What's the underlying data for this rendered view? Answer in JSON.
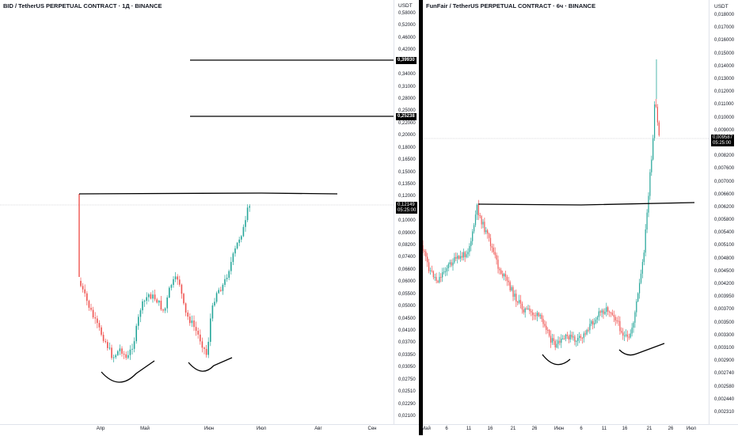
{
  "left": {
    "title": "BID / TetherUS PERPETUAL CONTRACT · 1Д · BINANCE",
    "currency": "USDT",
    "price_axis": [
      "0,58000",
      "0,52000",
      "0,46000",
      "0,42000",
      "0,38000",
      "0,34000",
      "0,31000",
      "0,28000",
      "0,25000",
      "0,22000",
      "0,20000",
      "0,18000",
      "0,16500",
      "0,15000",
      "0,13500",
      "0,12000",
      "0,11000",
      "0,10000",
      "0,09000",
      "0,08200",
      "0,07400",
      "0,06600",
      "0,06000",
      "0,05500",
      "0,05000",
      "0,04500",
      "0,04100",
      "0,03700",
      "0,03350",
      "0,03050",
      "0,02750",
      "0,02510",
      "0,02290",
      "0,02100"
    ],
    "time_axis": [
      "Апр",
      "Май",
      "Июн",
      "Июл",
      "Авг",
      "Сен"
    ],
    "level_labels": [
      "0,39930",
      "0,25238"
    ],
    "current_price": "0,12149",
    "countdown": "05:25:00"
  },
  "right": {
    "title": "FunFair / TetherUS PERPETUAL CONTRACT · 6ч · BINANCE",
    "currency": "USDT",
    "price_axis": [
      "0,018000",
      "0,017000",
      "0,016000",
      "0,015000",
      "0,014000",
      "0,013000",
      "0,012000",
      "0,011000",
      "0,010000",
      "0,009000",
      "0,008800",
      "0,008200",
      "0,007600",
      "0,007000",
      "0,006600",
      "0,006200",
      "0,005800",
      "0,005400",
      "0,005100",
      "0,004800",
      "0,004500",
      "0,004200",
      "0,003950",
      "0,003700",
      "0,003500",
      "0,003300",
      "0,003100",
      "0,002900",
      "0,002740",
      "0,002580",
      "0,002440",
      "0,002310"
    ],
    "time_axis": [
      "Май",
      "6",
      "11",
      "16",
      "21",
      "26",
      "Июн",
      "6",
      "11",
      "16",
      "21",
      "26",
      "Июл"
    ],
    "current_price": "0,009587",
    "countdown": "05:25:00"
  },
  "colors": {
    "up": "#26a69a",
    "down": "#ef5350",
    "drawing": "#000000",
    "text": "#131722",
    "grid": "#e0e3eb"
  }
}
